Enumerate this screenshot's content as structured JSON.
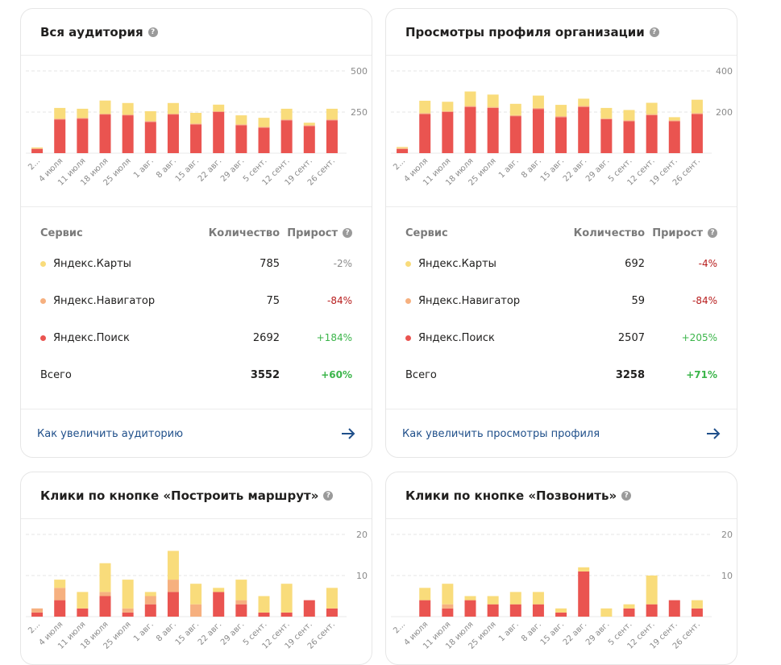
{
  "colors": {
    "maps": "#f9dc7b",
    "navigator": "#f6b07f",
    "search": "#ea5450",
    "neutral": "#8b8b8b",
    "negative": "#b71c1c",
    "positive": "#3bb54a"
  },
  "table_headers": {
    "service": "Сервис",
    "count": "Количество",
    "growth": "Прирост"
  },
  "cards": [
    {
      "title": "Вся аудитория",
      "rows": [
        {
          "service": "Яндекс.Карты",
          "count": "785",
          "growth": "-2%",
          "growth_tone": "neutral",
          "color": "maps"
        },
        {
          "service": "Яндекс.Навигатор",
          "count": "75",
          "growth": "-84%",
          "growth_tone": "negative",
          "color": "navigator"
        },
        {
          "service": "Яндекс.Поиск",
          "count": "2692",
          "growth": "+184%",
          "growth_tone": "positive",
          "color": "search"
        }
      ],
      "total": {
        "label": "Всего",
        "count": "3552",
        "growth": "+60%",
        "growth_tone": "positive"
      },
      "link": "Как увеличить аудиторию"
    },
    {
      "title": "Просмотры профиля организации",
      "rows": [
        {
          "service": "Яндекс.Карты",
          "count": "692",
          "growth": "-4%",
          "growth_tone": "negative",
          "color": "maps"
        },
        {
          "service": "Яндекс.Навигатор",
          "count": "59",
          "growth": "-84%",
          "growth_tone": "negative",
          "color": "navigator"
        },
        {
          "service": "Яндекс.Поиск",
          "count": "2507",
          "growth": "+205%",
          "growth_tone": "positive",
          "color": "search"
        }
      ],
      "total": {
        "label": "Всего",
        "count": "3258",
        "growth": "+71%",
        "growth_tone": "positive"
      },
      "link": "Как увеличить просмотры профиля"
    },
    {
      "title": "Клики по кнопке «Построить маршрут»"
    },
    {
      "title": "Клики по кнопке «Позвонить»"
    }
  ],
  "chart_data": [
    {
      "type": "bar",
      "stacked": true,
      "categories": [
        "2...",
        "4 июля",
        "11 июля",
        "18 июля",
        "25 июля",
        "1 авг.",
        "8 авг.",
        "15 авг.",
        "22 авг.",
        "29 авг.",
        "5 сент.",
        "12 сент.",
        "19 сент.",
        "26 сент."
      ],
      "series": [
        {
          "color": "search",
          "values": [
            25,
            205,
            210,
            235,
            230,
            190,
            235,
            175,
            250,
            170,
            155,
            200,
            165,
            200
          ]
        },
        {
          "color": "navigator",
          "values": [
            5,
            5,
            5,
            5,
            5,
            5,
            5,
            5,
            5,
            5,
            5,
            5,
            5,
            5
          ]
        },
        {
          "color": "maps",
          "values": [
            5,
            65,
            55,
            80,
            70,
            60,
            65,
            65,
            40,
            55,
            55,
            65,
            15,
            65
          ]
        }
      ],
      "yticks": [
        250,
        500
      ],
      "ylim": [
        0,
        500
      ],
      "grid": true
    },
    {
      "type": "bar",
      "stacked": true,
      "categories": [
        "2...",
        "4 июля",
        "11 июля",
        "18 июля",
        "25 июля",
        "1 авг.",
        "8 авг.",
        "15 авг.",
        "22 авг.",
        "29 авг.",
        "5 сент.",
        "12 сент.",
        "19 сент.",
        "26 сент."
      ],
      "series": [
        {
          "color": "search",
          "values": [
            20,
            190,
            200,
            225,
            220,
            180,
            215,
            175,
            225,
            165,
            155,
            185,
            155,
            190
          ]
        },
        {
          "color": "navigator",
          "values": [
            5,
            5,
            5,
            5,
            5,
            5,
            5,
            5,
            5,
            5,
            5,
            5,
            5,
            5
          ]
        },
        {
          "color": "maps",
          "values": [
            5,
            60,
            45,
            70,
            60,
            55,
            60,
            55,
            35,
            50,
            50,
            55,
            15,
            65
          ]
        }
      ],
      "yticks": [
        200,
        400
      ],
      "ylim": [
        0,
        400
      ],
      "grid": true
    },
    {
      "type": "bar",
      "stacked": true,
      "categories": [
        "2...",
        "4 июля",
        "11 июля",
        "18 июля",
        "25 июля",
        "1 авг.",
        "8 авг.",
        "15 авг.",
        "22 авг.",
        "29 авг.",
        "5 сент.",
        "12 сент.",
        "19 сент.",
        "26 сент."
      ],
      "series": [
        {
          "color": "search",
          "values": [
            1,
            4,
            2,
            5,
            1,
            3,
            6,
            0,
            6,
            3,
            1,
            1,
            4,
            2
          ]
        },
        {
          "color": "navigator",
          "values": [
            1,
            3,
            0,
            1,
            1,
            2,
            3,
            3,
            0,
            1,
            0,
            0,
            0,
            0
          ]
        },
        {
          "color": "maps",
          "values": [
            0,
            2,
            4,
            7,
            7,
            1,
            7,
            5,
            1,
            5,
            4,
            7,
            0,
            5
          ]
        }
      ],
      "yticks": [
        10,
        20
      ],
      "ylim": [
        0,
        20
      ],
      "grid": true
    },
    {
      "type": "bar",
      "stacked": true,
      "categories": [
        "2...",
        "4 июля",
        "11 июля",
        "18 июля",
        "25 июля",
        "1 авг.",
        "8 авг.",
        "15 авг.",
        "22 авг.",
        "29 авг.",
        "5 сент.",
        "12 сент.",
        "19 сент.",
        "26 сент."
      ],
      "series": [
        {
          "color": "search",
          "values": [
            0,
            4,
            2,
            4,
            3,
            3,
            3,
            1,
            11,
            0,
            2,
            3,
            4,
            2
          ]
        },
        {
          "color": "navigator",
          "values": [
            0,
            0,
            1,
            0,
            0,
            0,
            0,
            0,
            0,
            0,
            0,
            0,
            0,
            0
          ]
        },
        {
          "color": "maps",
          "values": [
            0,
            3,
            5,
            1,
            2,
            3,
            3,
            1,
            1,
            2,
            1,
            7,
            0,
            2
          ]
        }
      ],
      "yticks": [
        10,
        20
      ],
      "ylim": [
        0,
        20
      ],
      "grid": true
    }
  ]
}
